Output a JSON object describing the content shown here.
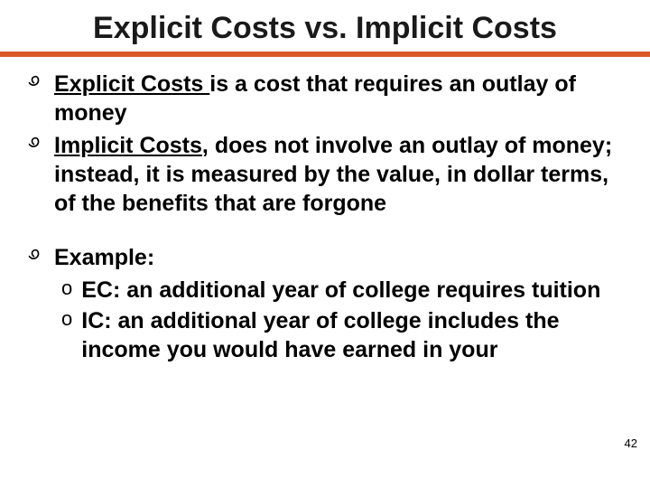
{
  "colors": {
    "background": "#ffffff",
    "text": "#000000",
    "title": "#1a1a1a",
    "accent": "#d85a2a"
  },
  "typography": {
    "title_fontsize": 34,
    "body_fontsize": 25,
    "pagenum_fontsize": 13,
    "bold_body": true
  },
  "title": "Explicit Costs vs. Implicit Costs",
  "bullets": {
    "b1": {
      "term": "Explicit Costs ",
      "rest": "is a cost that requires an outlay of money"
    },
    "b2": {
      "term": "Implicit Costs",
      "rest": ", does not involve an outlay of money; instead, it is measured by the value, in dollar terms, of the  benefits that are forgone"
    },
    "b3": {
      "label": "Example:",
      "sub1": "EC:  an additional year of college requires tuition",
      "sub2": "IC:  an additional year of college includes the income you would have earned in your"
    }
  },
  "markers": {
    "main": "་",
    "sub": "o"
  },
  "page_number": "42"
}
